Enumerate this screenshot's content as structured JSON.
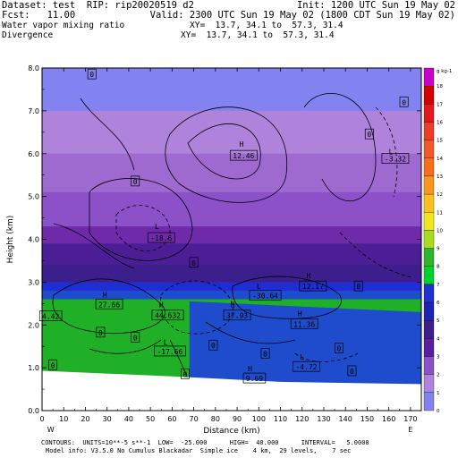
{
  "header": {
    "dataset_line": "Dataset: test  RIP: rip20020519 d2",
    "init_line": "Init: 1200 UTC Sun 19 May 02",
    "fcst_line": "Fcst:   11.00",
    "valid_line": "Valid: 2300 UTC Sun 19 May 02 (1800 CDT Sun 19 May 02)",
    "field1_name": "Water vapor mixing ratio",
    "field1_xy": "XY=  13.7, 34.1 to  57.3, 31.4",
    "field2_name": "Divergence",
    "field2_xy": "XY=  13.7, 34.1 to  57.3, 31.4"
  },
  "footer": {
    "contours_line": "CONTOURS:  UNITS=10**-5 s**-1  LOW=  -25.000      HIGH=  40.000      INTERVAL=   5.0000",
    "model_line": "Model info: V3.5.0 No Cumulus Blackadar  Simple ice    4 km,  29 levels,    7 sec"
  },
  "colors": {
    "background": "#ffffff",
    "terrain": "#ffffff",
    "contour": "#000000"
  },
  "chart_data": {
    "type": "heatmap",
    "title": "",
    "xlabel": "Distance (km)",
    "ylabel": "Height (km)",
    "xlim": [
      0,
      175
    ],
    "ylim": [
      0,
      8
    ],
    "x_ticks": [
      0,
      10,
      20,
      30,
      40,
      50,
      60,
      70,
      80,
      90,
      100,
      110,
      120,
      130,
      140,
      150,
      160,
      170
    ],
    "y_ticks": [
      "0.0",
      "1.0",
      "2.0",
      "3.0",
      "4.0",
      "5.0",
      "6.0",
      "7.0",
      "8.0"
    ],
    "left_end_label": "W",
    "right_end_label": "E",
    "colorbar_unit": "g kg-1",
    "colorbar_labels": [
      18,
      17,
      16,
      15,
      14,
      13,
      12,
      11,
      10,
      9,
      8,
      7,
      6,
      5,
      4,
      3,
      2,
      1,
      0
    ],
    "colorbar_colors": [
      "#c800c8",
      "#d20000",
      "#e1191e",
      "#eb3c28",
      "#f05a28",
      "#f56e1e",
      "#fa961e",
      "#ffbe1e",
      "#f0e61e",
      "#aadc1e",
      "#2db42d",
      "#00d22d",
      "#1e32d2",
      "#1e23b4",
      "#3c1e8c",
      "#5a1ea0",
      "#8c50c8",
      "#af82dc",
      "#8282f0"
    ],
    "mixing_ratio_layers": [
      {
        "top_km": 8.0,
        "g_kg": 0,
        "color": "#8282f0"
      },
      {
        "top_km": 7.0,
        "g_kg": 1,
        "color": "#af82dc"
      },
      {
        "top_km": 6.0,
        "g_kg": 2,
        "color": "#9e6ad0"
      },
      {
        "top_km": 5.1,
        "g_kg": 3,
        "color": "#8c50c8"
      },
      {
        "top_km": 4.3,
        "g_kg": 4,
        "color": "#6e2aa8"
      },
      {
        "top_km": 3.9,
        "g_kg": 5,
        "color": "#4b1e96"
      },
      {
        "top_km": 3.4,
        "g_kg": 6,
        "color": "#3c1e8c"
      },
      {
        "top_km": 3.0,
        "g_kg": 7,
        "color": "#1e2ed2"
      },
      {
        "top_km": 2.8,
        "g_kg": 8,
        "color": "#1e4ccc"
      },
      {
        "top_km": 2.6,
        "g_kg": 9,
        "color": "#20b028"
      }
    ],
    "divergence_labels": [
      {
        "text": "0",
        "x": 23,
        "y": 7.85,
        "boxed": true
      },
      {
        "text": "0",
        "x": 167,
        "y": 7.2,
        "boxed": true
      },
      {
        "text": "0",
        "x": 151,
        "y": 6.45,
        "boxed": true
      },
      {
        "text": "H",
        "x": 92,
        "y": 6.22,
        "boxed": false
      },
      {
        "text": "12.46",
        "x": 93,
        "y": 5.95,
        "boxed": true
      },
      {
        "text": "L",
        "x": 161,
        "y": 6.05,
        "boxed": false
      },
      {
        "text": "-3.32",
        "x": 163,
        "y": 5.88,
        "boxed": true
      },
      {
        "text": "0",
        "x": 43,
        "y": 5.35,
        "boxed": true
      },
      {
        "text": "L",
        "x": 53,
        "y": 4.3,
        "boxed": false
      },
      {
        "text": "-18.6",
        "x": 55,
        "y": 4.03,
        "boxed": true
      },
      {
        "text": "0",
        "x": 70,
        "y": 3.45,
        "boxed": true
      },
      {
        "text": "H",
        "x": 123,
        "y": 3.15,
        "boxed": false
      },
      {
        "text": "12.17",
        "x": 125,
        "y": 2.9,
        "boxed": true
      },
      {
        "text": "L",
        "x": 100,
        "y": 2.9,
        "boxed": false
      },
      {
        "text": "-30.64",
        "x": 103,
        "y": 2.68,
        "boxed": true
      },
      {
        "text": "0",
        "x": 146,
        "y": 2.9,
        "boxed": true
      },
      {
        "text": "H",
        "x": 29,
        "y": 2.7,
        "boxed": false
      },
      {
        "text": "27.66",
        "x": 31,
        "y": 2.48,
        "boxed": true
      },
      {
        "text": "H",
        "x": 55,
        "y": 2.47,
        "boxed": false
      },
      {
        "text": "44.632",
        "x": 58,
        "y": 2.22,
        "boxed": true
      },
      {
        "text": "H",
        "x": 88,
        "y": 2.47,
        "boxed": false
      },
      {
        "text": "37.93",
        "x": 90,
        "y": 2.22,
        "boxed": true
      },
      {
        "text": "H",
        "x": 119,
        "y": 2.27,
        "boxed": false
      },
      {
        "text": "11.36",
        "x": 121,
        "y": 2.02,
        "boxed": true
      },
      {
        "text": "4.42",
        "x": 4,
        "y": 2.2,
        "boxed": true
      },
      {
        "text": "0",
        "x": 27,
        "y": 1.82,
        "boxed": true
      },
      {
        "text": "L",
        "x": 57,
        "y": 1.6,
        "boxed": false
      },
      {
        "text": "-17.66",
        "x": 59,
        "y": 1.38,
        "boxed": true
      },
      {
        "text": "0",
        "x": 43,
        "y": 1.7,
        "boxed": true
      },
      {
        "text": "0",
        "x": 79,
        "y": 1.52,
        "boxed": true
      },
      {
        "text": "0",
        "x": 103,
        "y": 1.33,
        "boxed": true
      },
      {
        "text": "0",
        "x": 137,
        "y": 1.45,
        "boxed": true
      },
      {
        "text": "L",
        "x": 120,
        "y": 1.25,
        "boxed": false
      },
      {
        "text": "-4.72",
        "x": 122,
        "y": 1.02,
        "boxed": true
      },
      {
        "text": "H",
        "x": 96,
        "y": 0.98,
        "boxed": false
      },
      {
        "text": "9.69",
        "x": 98,
        "y": 0.75,
        "boxed": true
      },
      {
        "text": "0",
        "x": 5,
        "y": 1.06,
        "boxed": true
      },
      {
        "text": "0",
        "x": 66,
        "y": 0.85,
        "boxed": true
      },
      {
        "text": "0",
        "x": 143,
        "y": 0.92,
        "boxed": true
      }
    ]
  }
}
